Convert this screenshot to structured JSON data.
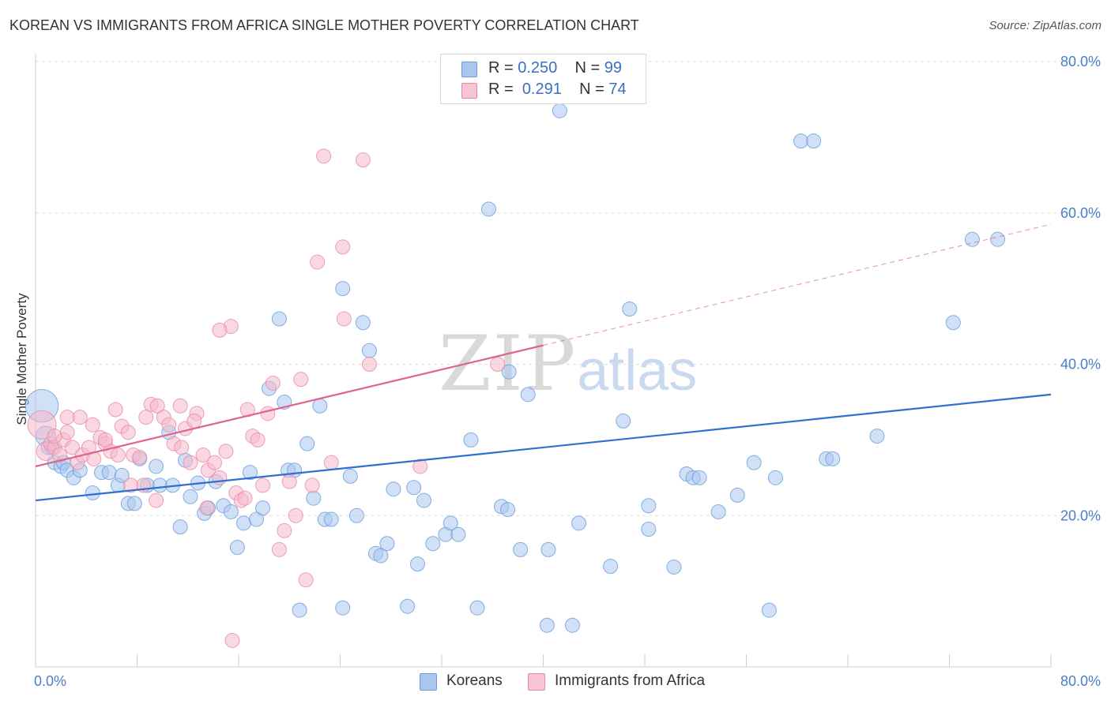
{
  "title": "KOREAN VS IMMIGRANTS FROM AFRICA SINGLE MOTHER POVERTY CORRELATION CHART",
  "source": "Source: ZipAtlas.com",
  "watermark": {
    "zip": "ZIP",
    "atlas": "atlas"
  },
  "legend": {
    "rows": [
      {
        "r_label": "R =",
        "r_value": "0.250",
        "n_label": "N =",
        "n_value": "99"
      },
      {
        "r_label": "R =",
        "r_value": "0.291",
        "n_label": "N =",
        "n_value": "74"
      }
    ]
  },
  "bottom_legend": [
    "Koreans",
    "Immigrants from Africa"
  ],
  "colors": {
    "koreans_fill": "#a9c6ee",
    "koreans_stroke": "#6b9bd8",
    "koreans_line": "#2f6fcf",
    "africa_fill": "#f6b8ca",
    "africa_stroke": "#e889a6",
    "africa_line": "#e0638c",
    "tick_label": "#4a80c8",
    "grid": "#dddddd"
  },
  "chart_data": {
    "type": "scatter",
    "title": "KOREAN VS IMMIGRANTS FROM AFRICA SINGLE MOTHER POVERTY CORRELATION CHART",
    "xlabel": "",
    "ylabel": "Single Mother Poverty",
    "xlim": [
      0,
      80
    ],
    "ylim": [
      0,
      80
    ],
    "x_tick_labels": [
      "0.0%",
      "80.0%"
    ],
    "y_tick_labels": [
      "20.0%",
      "40.0%",
      "60.0%",
      "80.0%"
    ],
    "y_ticks": [
      20,
      40,
      60,
      80
    ],
    "x_minor_ticks": [
      8,
      16,
      24,
      32,
      40,
      48,
      56,
      64,
      72,
      80
    ],
    "grid": true,
    "series": [
      {
        "name": "Koreans",
        "trend": {
          "x": [
            0,
            80
          ],
          "y": [
            22.0,
            36.0
          ],
          "solid_to": 80
        },
        "points": [
          [
            0.5,
            34.5,
            2.3
          ],
          [
            0.8,
            30.5,
            1.4
          ],
          [
            1.0,
            29,
            1
          ],
          [
            1.3,
            29,
            1
          ],
          [
            1.5,
            27,
            1
          ],
          [
            2,
            26.5,
            1
          ],
          [
            2.2,
            27,
            1
          ],
          [
            2.5,
            26,
            1
          ],
          [
            3,
            25,
            1
          ],
          [
            3.5,
            26,
            1
          ],
          [
            4.5,
            23,
            1
          ],
          [
            5.2,
            25.7,
            1
          ],
          [
            5.8,
            25.7,
            1
          ],
          [
            6.5,
            24,
            1
          ],
          [
            6.8,
            25.3,
            1
          ],
          [
            7.3,
            21.6,
            1
          ],
          [
            7.8,
            21.6,
            1
          ],
          [
            8.2,
            27.5,
            1
          ],
          [
            8.8,
            24,
            1
          ],
          [
            9.5,
            26.5,
            1
          ],
          [
            9.8,
            24,
            1
          ],
          [
            10.8,
            24,
            1
          ],
          [
            10.5,
            31,
            1
          ],
          [
            11.4,
            18.5,
            1
          ],
          [
            11.8,
            27.3,
            1
          ],
          [
            12.2,
            22.5,
            1
          ],
          [
            12.8,
            24.3,
            1
          ],
          [
            13.3,
            20.3,
            1
          ],
          [
            13.6,
            21,
            1
          ],
          [
            14.2,
            24.5,
            1
          ],
          [
            14.8,
            21.3,
            1
          ],
          [
            15.4,
            20.5,
            1
          ],
          [
            15.9,
            15.8,
            1
          ],
          [
            16.4,
            19,
            1
          ],
          [
            16.9,
            25.7,
            1
          ],
          [
            17.4,
            19.5,
            1
          ],
          [
            17.9,
            21,
            1
          ],
          [
            18.4,
            36.8,
            1
          ],
          [
            19.2,
            46,
            1
          ],
          [
            19.6,
            35,
            1
          ],
          [
            19.9,
            26,
            1
          ],
          [
            20.4,
            26,
            1
          ],
          [
            20.8,
            7.5,
            1
          ],
          [
            21.4,
            29.5,
            1
          ],
          [
            21.9,
            22.3,
            1
          ],
          [
            22.4,
            34.5,
            1
          ],
          [
            22.8,
            19.5,
            1
          ],
          [
            23.3,
            19.5,
            1
          ],
          [
            24.2,
            7.8,
            1
          ],
          [
            24.2,
            50,
            1
          ],
          [
            24.8,
            25.2,
            1
          ],
          [
            25.3,
            20,
            1
          ],
          [
            25.8,
            45.5,
            1
          ],
          [
            26.3,
            41.8,
            1
          ],
          [
            26.8,
            15,
            1
          ],
          [
            27.2,
            14.7,
            1
          ],
          [
            27.7,
            16.3,
            1
          ],
          [
            28.2,
            23.5,
            1
          ],
          [
            29.3,
            8,
            1
          ],
          [
            29.8,
            23.7,
            1
          ],
          [
            30.1,
            13.6,
            1
          ],
          [
            30.6,
            22,
            1
          ],
          [
            31.3,
            16.3,
            1
          ],
          [
            32.3,
            17.5,
            1
          ],
          [
            32.7,
            19,
            1
          ],
          [
            33.3,
            17.5,
            1
          ],
          [
            34.3,
            30,
            1
          ],
          [
            34.8,
            7.8,
            1
          ],
          [
            35.7,
            60.5,
            1
          ],
          [
            36.7,
            21.2,
            1
          ],
          [
            37.2,
            20.8,
            1
          ],
          [
            37.3,
            39,
            1
          ],
          [
            38.2,
            15.5,
            1
          ],
          [
            38.8,
            36,
            1
          ],
          [
            40.4,
            15.5,
            1
          ],
          [
            41.3,
            73.5,
            1
          ],
          [
            40.3,
            5.5,
            1
          ],
          [
            42.3,
            5.5,
            1
          ],
          [
            42.8,
            19,
            1
          ],
          [
            45.3,
            13.3,
            1
          ],
          [
            46.3,
            32.5,
            1
          ],
          [
            46.8,
            47.3,
            1
          ],
          [
            48.3,
            18.2,
            1
          ],
          [
            48.3,
            21.3,
            1
          ],
          [
            50.3,
            13.2,
            1
          ],
          [
            51.3,
            25.5,
            1
          ],
          [
            51.8,
            25,
            1
          ],
          [
            52.3,
            25,
            1
          ],
          [
            53.8,
            20.5,
            1
          ],
          [
            55.3,
            22.7,
            1
          ],
          [
            56.6,
            27,
            1
          ],
          [
            57.8,
            7.5,
            1
          ],
          [
            58.3,
            25,
            1
          ],
          [
            60.3,
            69.5,
            1
          ],
          [
            61.3,
            69.5,
            1
          ],
          [
            62.3,
            27.5,
            1
          ],
          [
            62.8,
            27.5,
            1
          ],
          [
            66.3,
            30.5,
            1
          ],
          [
            72.3,
            45.5,
            1
          ],
          [
            73.8,
            56.5,
            1
          ],
          [
            75.8,
            56.5,
            1
          ]
        ]
      },
      {
        "name": "Immigrants from Africa",
        "trend": {
          "x": [
            0,
            80
          ],
          "y": [
            26.5,
            58.5
          ],
          "solid_to": 40
        },
        "points": [
          [
            0.5,
            32,
            2
          ],
          [
            0.8,
            28.5,
            1.3
          ],
          [
            1.2,
            29.5,
            1
          ],
          [
            1.5,
            29,
            1
          ],
          [
            1.9,
            28,
            1
          ],
          [
            2.2,
            30,
            1
          ],
          [
            2.5,
            31,
            1
          ],
          [
            2.9,
            29,
            1
          ],
          [
            3.3,
            27,
            1
          ],
          [
            3.7,
            28,
            1
          ],
          [
            4.2,
            29,
            1
          ],
          [
            4.6,
            27.5,
            1
          ],
          [
            5.1,
            30.3,
            1
          ],
          [
            5.5,
            29.5,
            1
          ],
          [
            5.9,
            28.5,
            1
          ],
          [
            6.3,
            34,
            1
          ],
          [
            6.8,
            31.8,
            1
          ],
          [
            7.3,
            31,
            1
          ],
          [
            7.7,
            28,
            1
          ],
          [
            8.2,
            27.7,
            1
          ],
          [
            8.7,
            33,
            1
          ],
          [
            9.1,
            34.7,
            1
          ],
          [
            9.6,
            34.5,
            1
          ],
          [
            10.1,
            33,
            1
          ],
          [
            10.5,
            32,
            1
          ],
          [
            10.9,
            29.5,
            1
          ],
          [
            11.4,
            34.5,
            1
          ],
          [
            11.8,
            31.5,
            1
          ],
          [
            12.2,
            27,
            1
          ],
          [
            12.7,
            33.5,
            1
          ],
          [
            13.2,
            28,
            1
          ],
          [
            13.6,
            26,
            1
          ],
          [
            14.1,
            27,
            1
          ],
          [
            14.5,
            25,
            1
          ],
          [
            15.0,
            28.5,
            1
          ],
          [
            15.4,
            45,
            1
          ],
          [
            15.8,
            23,
            1
          ],
          [
            16.2,
            22,
            1
          ],
          [
            16.7,
            34,
            1
          ],
          [
            17.1,
            30.5,
            1
          ],
          [
            17.5,
            30,
            1
          ],
          [
            17.9,
            24,
            1
          ],
          [
            18.3,
            33.5,
            1
          ],
          [
            18.7,
            37.5,
            1
          ],
          [
            19.2,
            15.5,
            1
          ],
          [
            19.6,
            18,
            1
          ],
          [
            20.0,
            24.5,
            1
          ],
          [
            20.5,
            20,
            1
          ],
          [
            20.9,
            38,
            1
          ],
          [
            21.3,
            11.5,
            1
          ],
          [
            21.8,
            24,
            1
          ],
          [
            22.2,
            53.5,
            1
          ],
          [
            22.7,
            67.5,
            1
          ],
          [
            23.3,
            27,
            1
          ],
          [
            24.2,
            55.5,
            1
          ],
          [
            24.3,
            46,
            1
          ],
          [
            25.8,
            67,
            1
          ],
          [
            26.3,
            40,
            1
          ],
          [
            14.5,
            44.5,
            1
          ],
          [
            15.5,
            3.5,
            1
          ],
          [
            12.5,
            32.5,
            1
          ],
          [
            11.5,
            29,
            1
          ],
          [
            9.5,
            22,
            1
          ],
          [
            8.5,
            24,
            1
          ],
          [
            7.5,
            24,
            1
          ],
          [
            6.5,
            28,
            1
          ],
          [
            5.5,
            30,
            1
          ],
          [
            4.5,
            32,
            1
          ],
          [
            3.5,
            33,
            1
          ],
          [
            2.5,
            33,
            1
          ],
          [
            1.5,
            30.5,
            1
          ],
          [
            30.3,
            26.5,
            1
          ],
          [
            36.4,
            40,
            1
          ],
          [
            16.5,
            22.3,
            1
          ],
          [
            13.5,
            21,
            1
          ]
        ]
      }
    ]
  }
}
